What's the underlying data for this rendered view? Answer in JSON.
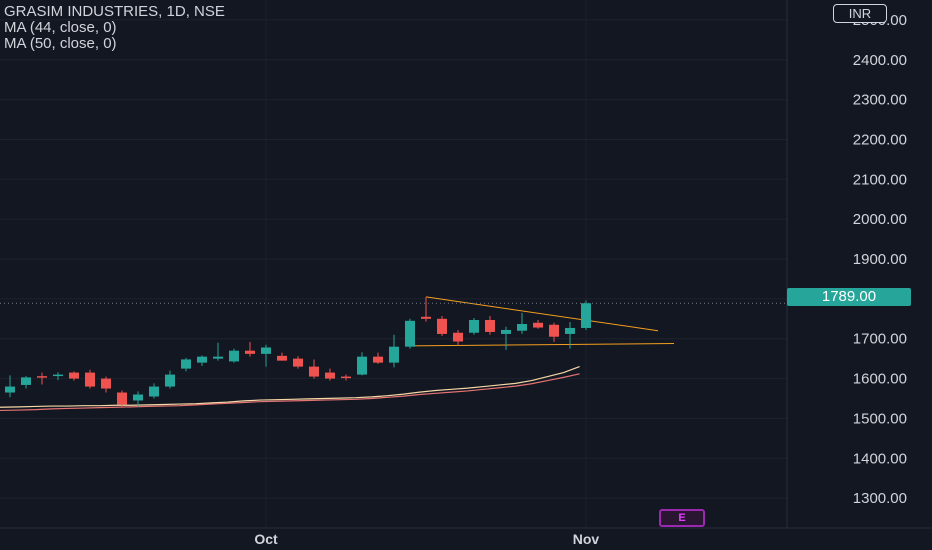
{
  "legend": {
    "line1": "GRASIM INDUSTRIES, 1D, NSE",
    "line2": "MA (44, close, 0)",
    "line3": "MA (50, close, 0)"
  },
  "currency": "INR",
  "event_marker": "E",
  "chart_data": {
    "type": "candlestick",
    "title": "GRASIM INDUSTRIES, 1D, NSE",
    "ylim": [
      1225,
      2550
    ],
    "y_ticks": [
      1300,
      1400,
      1500,
      1600,
      1700,
      1800,
      1900,
      2000,
      2100,
      2200,
      2300,
      2400,
      2500
    ],
    "y_tick_labels": [
      "1300.00",
      "1400.00",
      "1500.00",
      "1600.00",
      "1700.00",
      "1800.00",
      "1900.00",
      "2000.00",
      "2100.00",
      "2200.00",
      "2300.00",
      "2400.00",
      "2500.00"
    ],
    "x_ticks": [
      {
        "index": 16,
        "label": "Oct"
      },
      {
        "index": 36,
        "label": "Nov"
      }
    ],
    "last_price": "1789.00",
    "colors": {
      "up": "#26a69a",
      "down": "#ef5350",
      "ma44": "#f5d8a6",
      "ma50": "#e57373",
      "pattern": "#f59f1e"
    },
    "candles": [
      {
        "o": 1565,
        "h": 1608,
        "l": 1553,
        "c": 1580
      },
      {
        "o": 1584,
        "h": 1606,
        "l": 1575,
        "c": 1603
      },
      {
        "o": 1606,
        "h": 1615,
        "l": 1585,
        "c": 1605
      },
      {
        "o": 1608,
        "h": 1616,
        "l": 1596,
        "c": 1610
      },
      {
        "o": 1615,
        "h": 1618,
        "l": 1595,
        "c": 1600
      },
      {
        "o": 1615,
        "h": 1622,
        "l": 1575,
        "c": 1580
      },
      {
        "o": 1600,
        "h": 1605,
        "l": 1565,
        "c": 1575
      },
      {
        "o": 1565,
        "h": 1570,
        "l": 1530,
        "c": 1535
      },
      {
        "o": 1545,
        "h": 1568,
        "l": 1530,
        "c": 1560
      },
      {
        "o": 1555,
        "h": 1588,
        "l": 1550,
        "c": 1580
      },
      {
        "o": 1580,
        "h": 1620,
        "l": 1575,
        "c": 1610
      },
      {
        "o": 1625,
        "h": 1652,
        "l": 1618,
        "c": 1648
      },
      {
        "o": 1640,
        "h": 1658,
        "l": 1632,
        "c": 1655
      },
      {
        "o": 1650,
        "h": 1690,
        "l": 1645,
        "c": 1655
      },
      {
        "o": 1643,
        "h": 1675,
        "l": 1640,
        "c": 1670
      },
      {
        "o": 1670,
        "h": 1692,
        "l": 1655,
        "c": 1662
      },
      {
        "o": 1662,
        "h": 1685,
        "l": 1630,
        "c": 1678
      },
      {
        "o": 1657,
        "h": 1665,
        "l": 1645,
        "c": 1645
      },
      {
        "o": 1650,
        "h": 1656,
        "l": 1625,
        "c": 1630
      },
      {
        "o": 1630,
        "h": 1648,
        "l": 1600,
        "c": 1605
      },
      {
        "o": 1615,
        "h": 1625,
        "l": 1595,
        "c": 1600
      },
      {
        "o": 1605,
        "h": 1610,
        "l": 1595,
        "c": 1603
      },
      {
        "o": 1610,
        "h": 1666,
        "l": 1608,
        "c": 1655
      },
      {
        "o": 1655,
        "h": 1665,
        "l": 1637,
        "c": 1640
      },
      {
        "o": 1640,
        "h": 1710,
        "l": 1628,
        "c": 1680
      },
      {
        "o": 1680,
        "h": 1750,
        "l": 1675,
        "c": 1745
      },
      {
        "o": 1755,
        "h": 1805,
        "l": 1743,
        "c": 1750
      },
      {
        "o": 1750,
        "h": 1757,
        "l": 1707,
        "c": 1712
      },
      {
        "o": 1715,
        "h": 1722,
        "l": 1683,
        "c": 1693
      },
      {
        "o": 1715,
        "h": 1752,
        "l": 1710,
        "c": 1747
      },
      {
        "o": 1747,
        "h": 1757,
        "l": 1710,
        "c": 1717
      },
      {
        "o": 1712,
        "h": 1730,
        "l": 1672,
        "c": 1722
      },
      {
        "o": 1720,
        "h": 1765,
        "l": 1712,
        "c": 1737
      },
      {
        "o": 1740,
        "h": 1747,
        "l": 1725,
        "c": 1728
      },
      {
        "o": 1735,
        "h": 1740,
        "l": 1692,
        "c": 1705
      },
      {
        "o": 1712,
        "h": 1742,
        "l": 1675,
        "c": 1727
      },
      {
        "o": 1727,
        "h": 1796,
        "l": 1722,
        "c": 1789
      }
    ],
    "ma44": [
      1528,
      1529,
      1530,
      1531,
      1531,
      1532,
      1532,
      1533,
      1533,
      1534,
      1535,
      1536,
      1537,
      1539,
      1541,
      1544,
      1546,
      1547,
      1548,
      1549,
      1550,
      1551,
      1552,
      1554,
      1557,
      1561,
      1566,
      1570,
      1573,
      1576,
      1580,
      1584,
      1588,
      1595,
      1605,
      1615,
      1630
    ],
    "ma50": [
      1520,
      1521,
      1522,
      1524,
      1525,
      1526,
      1527,
      1528,
      1529,
      1530,
      1531,
      1532,
      1534,
      1536,
      1538,
      1540,
      1542,
      1543,
      1544,
      1545,
      1546,
      1547,
      1548,
      1550,
      1553,
      1556,
      1560,
      1563,
      1566,
      1569,
      1573,
      1577,
      1581,
      1587,
      1595,
      1603,
      1612
    ],
    "pattern_lines": [
      {
        "x1": 26,
        "y1": 1805,
        "x2": 40.5,
        "y2": 1720
      },
      {
        "x1": 25,
        "y1": 1682,
        "x2": 41.5,
        "y2": 1688
      }
    ]
  }
}
